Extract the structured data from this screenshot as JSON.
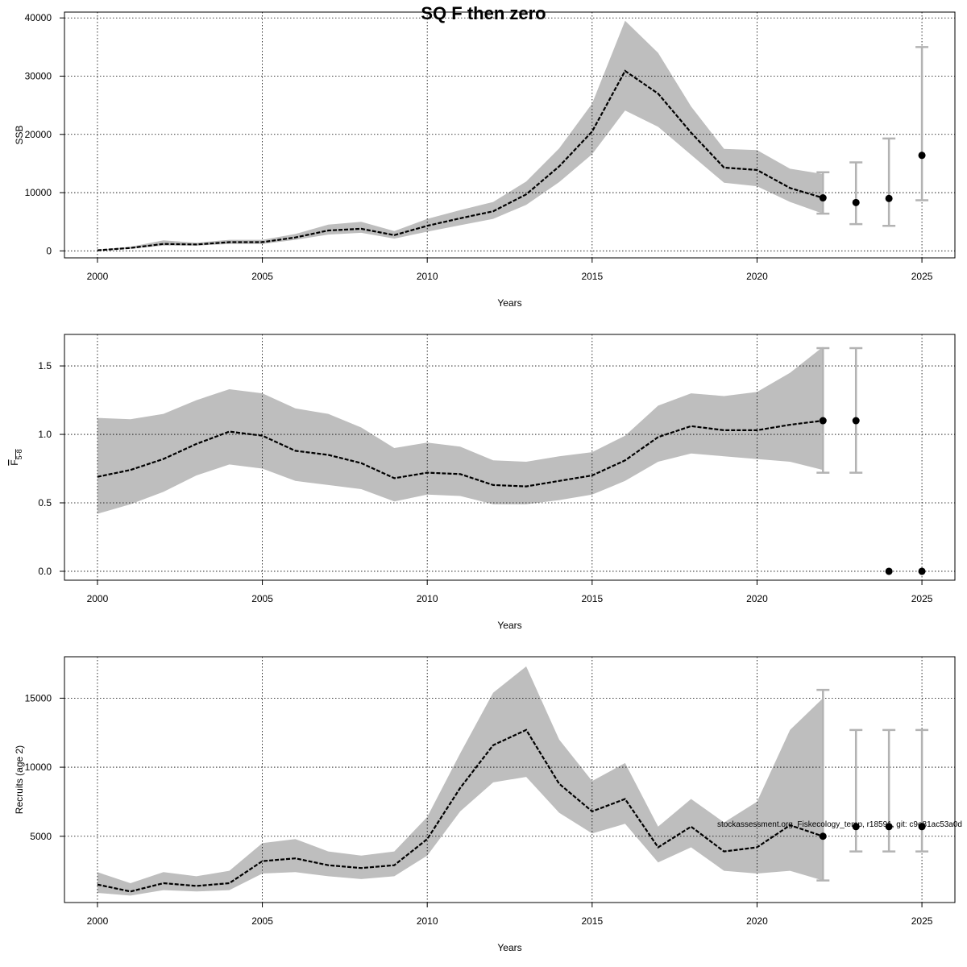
{
  "title": "SQ F then zero",
  "footer": "stockassessment.org, Fiskecology_temp, r18591, git: c9e81ac53a0d",
  "colors": {
    "band": "#bebebe",
    "errorbar": "#b3b3b3",
    "line": "#000000"
  },
  "chart_data": [
    {
      "type": "line",
      "panel": "ssb",
      "xlabel": "Years",
      "ylabel": "SSB",
      "xlim": [
        1999,
        2026
      ],
      "ylim": [
        -1200,
        41000
      ],
      "x_ticks": [
        2000,
        2005,
        2010,
        2015,
        2020,
        2025
      ],
      "y_ticks": [
        0,
        10000,
        20000,
        30000,
        40000
      ],
      "y_tick_labels": [
        "0",
        "10000",
        "20000",
        "30000",
        "40000"
      ],
      "grid": true,
      "estimate": {
        "x": [
          2000,
          2001,
          2002,
          2003,
          2004,
          2005,
          2006,
          2007,
          2008,
          2009,
          2010,
          2011,
          2012,
          2013,
          2014,
          2015,
          2016,
          2017,
          2018,
          2019,
          2020,
          2021,
          2022
        ],
        "y": [
          100,
          500,
          1200,
          1100,
          1500,
          1500,
          2300,
          3500,
          3800,
          2700,
          4300,
          5600,
          6800,
          9700,
          14500,
          20500,
          30900,
          27000,
          20300,
          14300,
          13900,
          10800,
          9100
        ],
        "low": [
          50,
          350,
          900,
          900,
          1200,
          1200,
          1900,
          2800,
          3100,
          2100,
          3300,
          4400,
          5500,
          7900,
          11800,
          16600,
          24100,
          21300,
          16500,
          11700,
          11100,
          8400,
          6400
        ],
        "high": [
          150,
          700,
          1800,
          1400,
          1900,
          1900,
          2900,
          4500,
          5000,
          3400,
          5500,
          7000,
          8400,
          11900,
          17600,
          25300,
          39500,
          34000,
          24800,
          17500,
          17300,
          14100,
          13200
        ]
      },
      "projection": {
        "x": [
          2022,
          2023,
          2024,
          2025
        ],
        "y": [
          9100,
          8300,
          9000,
          16400
        ],
        "low": [
          6400,
          4600,
          4300,
          8700
        ],
        "high": [
          13500,
          15200,
          19300,
          35000
        ]
      }
    },
    {
      "type": "line",
      "panel": "fbar",
      "xlabel": "Years",
      "ylabel": "F",
      "ylabel_subscript": "5-8",
      "xlim": [
        1999,
        2026
      ],
      "ylim": [
        -0.065,
        1.73
      ],
      "x_ticks": [
        2000,
        2005,
        2010,
        2015,
        2020,
        2025
      ],
      "y_ticks": [
        0,
        0.5,
        1,
        1.5
      ],
      "y_tick_labels": [
        "0.0",
        "0.5",
        "1.0",
        "1.5"
      ],
      "grid": true,
      "estimate": {
        "x": [
          2000,
          2001,
          2002,
          2003,
          2004,
          2005,
          2006,
          2007,
          2008,
          2009,
          2010,
          2011,
          2012,
          2013,
          2014,
          2015,
          2016,
          2017,
          2018,
          2019,
          2020,
          2021,
          2022
        ],
        "y": [
          0.69,
          0.74,
          0.82,
          0.93,
          1.02,
          0.99,
          0.88,
          0.85,
          0.79,
          0.68,
          0.72,
          0.71,
          0.63,
          0.62,
          0.66,
          0.7,
          0.81,
          0.98,
          1.06,
          1.03,
          1.03,
          1.07,
          1.1
        ],
        "low": [
          0.42,
          0.49,
          0.58,
          0.7,
          0.78,
          0.75,
          0.66,
          0.63,
          0.6,
          0.51,
          0.56,
          0.55,
          0.49,
          0.49,
          0.52,
          0.56,
          0.66,
          0.8,
          0.86,
          0.84,
          0.82,
          0.8,
          0.74
        ],
        "high": [
          1.12,
          1.11,
          1.15,
          1.25,
          1.33,
          1.3,
          1.19,
          1.15,
          1.05,
          0.9,
          0.94,
          0.91,
          0.81,
          0.8,
          0.84,
          0.87,
          0.99,
          1.21,
          1.3,
          1.28,
          1.31,
          1.45,
          1.64
        ]
      },
      "projection": {
        "x": [
          2022,
          2023,
          2024,
          2025
        ],
        "y": [
          1.1,
          1.1,
          0,
          0
        ],
        "low": [
          0.72,
          0.72,
          0,
          0
        ],
        "high": [
          1.63,
          1.63,
          0,
          0
        ]
      }
    },
    {
      "type": "line",
      "panel": "recruits",
      "xlabel": "Years",
      "ylabel": "Recruits (age 2)",
      "xlim": [
        1999,
        2026
      ],
      "ylim": [
        200,
        18000
      ],
      "x_ticks": [
        2000,
        2005,
        2010,
        2015,
        2020,
        2025
      ],
      "y_ticks": [
        5000,
        10000,
        15000
      ],
      "y_tick_labels": [
        "5000",
        "10000",
        "15000"
      ],
      "grid": true,
      "estimate": {
        "x": [
          2000,
          2001,
          2002,
          2003,
          2004,
          2005,
          2006,
          2007,
          2008,
          2009,
          2010,
          2011,
          2012,
          2013,
          2014,
          2015,
          2016,
          2017,
          2018,
          2019,
          2020,
          2021,
          2022
        ],
        "y": [
          1500,
          1000,
          1600,
          1400,
          1600,
          3200,
          3400,
          2900,
          2700,
          2900,
          4800,
          8500,
          11600,
          12700,
          8800,
          6800,
          7700,
          4200,
          5700,
          3900,
          4200,
          5800,
          5000
        ],
        "low": [
          900,
          700,
          1100,
          1000,
          1100,
          2300,
          2400,
          2100,
          1900,
          2100,
          3600,
          6800,
          8900,
          9300,
          6700,
          5200,
          5900,
          3100,
          4200,
          2500,
          2300,
          2500,
          1800
        ],
        "high": [
          2400,
          1600,
          2400,
          2100,
          2500,
          4500,
          4800,
          3900,
          3600,
          3900,
          6400,
          11000,
          15400,
          17300,
          12000,
          9000,
          10300,
          5700,
          7700,
          6000,
          7500,
          12700,
          15000
        ]
      },
      "projection": {
        "x": [
          2022,
          2023,
          2024,
          2025
        ],
        "y": [
          5000,
          5700,
          5700,
          5700
        ],
        "low": [
          1800,
          3900,
          3900,
          3900
        ],
        "high": [
          15600,
          12700,
          12700,
          12700
        ]
      }
    }
  ]
}
